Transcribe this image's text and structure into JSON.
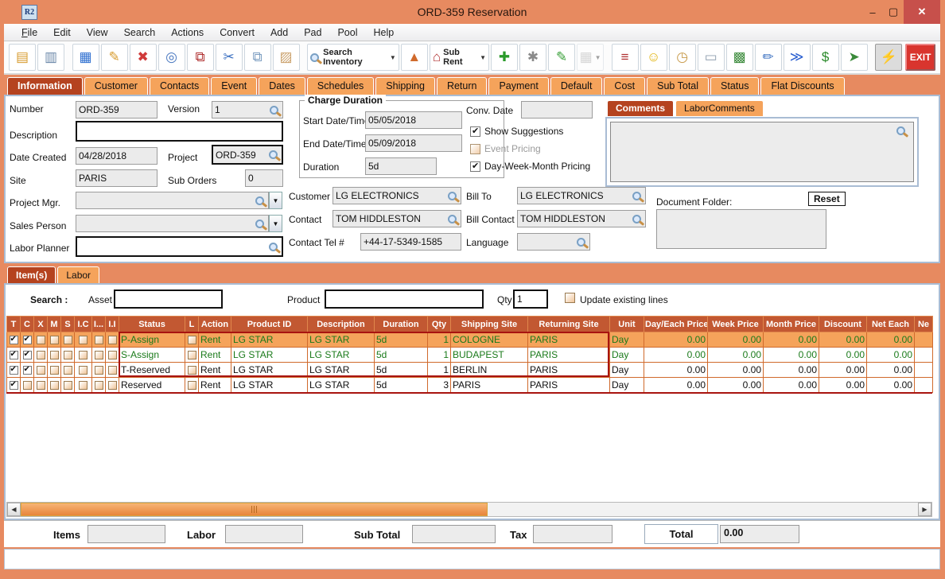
{
  "window": {
    "title": "ORD-359 Reservation",
    "app_badge": "R2"
  },
  "window_controls": {
    "minimize": "–",
    "maximize": "▢",
    "close": "✕"
  },
  "menubar": {
    "items": [
      {
        "label": "File",
        "accel": true
      },
      {
        "label": "Edit"
      },
      {
        "label": "View"
      },
      {
        "label": "Search"
      },
      {
        "label": "Actions"
      },
      {
        "label": "Convert"
      },
      {
        "label": "Add"
      },
      {
        "label": "Pad"
      },
      {
        "label": "Pool"
      },
      {
        "label": "Help"
      }
    ]
  },
  "toolbar": {
    "buttons": [
      {
        "name": "new-document-icon",
        "glyph": "▤",
        "color": "#d79b2e"
      },
      {
        "name": "print-icon",
        "glyph": "▥",
        "color": "#6a87a8"
      },
      {
        "name": "sep"
      },
      {
        "name": "save-icon",
        "glyph": "▦",
        "color": "#2e6fd0"
      },
      {
        "name": "edit-icon",
        "glyph": "✎",
        "color": "#d79b2e"
      },
      {
        "name": "delete-icon",
        "glyph": "✖",
        "color": "#d03a3a"
      },
      {
        "name": "find-icon",
        "glyph": "◎",
        "color": "#4a78c0"
      },
      {
        "name": "copy-document-icon",
        "glyph": "⧉",
        "color": "#b03030"
      },
      {
        "name": "cut-icon",
        "glyph": "✂",
        "color": "#3a6fc0"
      },
      {
        "name": "copy-icon",
        "glyph": "⧉",
        "color": "#7a9cc0"
      },
      {
        "name": "paste-icon",
        "glyph": "▨",
        "color": "#caa06a"
      },
      {
        "name": "sep"
      },
      {
        "name": "search-inventory-button",
        "glyph": "mag",
        "label": "Search Inventory",
        "dropdown": true
      },
      {
        "name": "transfer-icon",
        "glyph": "▲",
        "color": "#d06a2c"
      },
      {
        "name": "sub-rent-button",
        "glyph": "⌂",
        "color": "#b03030",
        "label": "Sub Rent",
        "dropdown": true
      },
      {
        "name": "add-line-icon",
        "glyph": "✚",
        "color": "#2a9a2a"
      },
      {
        "name": "suggestions-icon",
        "glyph": "✱",
        "color": "#8a8a8a"
      },
      {
        "name": "notepad-icon",
        "glyph": "✎",
        "color": "#3aa03a"
      },
      {
        "name": "calendar-icon",
        "glyph": "▦",
        "color": "#aaaaaa",
        "dropdown": true,
        "disabled": true
      },
      {
        "name": "sep"
      },
      {
        "name": "hierarchy-icon",
        "glyph": "≡",
        "color": "#b03030"
      },
      {
        "name": "smiley-icon",
        "glyph": "☺",
        "color": "#e0b000"
      },
      {
        "name": "folder-history-icon",
        "glyph": "◷",
        "color": "#c89a4a"
      },
      {
        "name": "keyboard-key-icon",
        "glyph": "▭",
        "color": "#90a0b0"
      },
      {
        "name": "availability-cubes-icon",
        "glyph": "▩",
        "color": "#3a8a3a"
      },
      {
        "name": "edit-notes-icon",
        "glyph": "✏",
        "color": "#3a6fc0"
      },
      {
        "name": "send-money-icon",
        "glyph": "≫",
        "color": "#2a5fd0"
      },
      {
        "name": "billing-icon",
        "glyph": "$",
        "color": "#2a8a2a"
      },
      {
        "name": "truck-icon",
        "glyph": "➤",
        "color": "#3a8a3a"
      },
      {
        "name": "sep"
      },
      {
        "name": "quick-action-icon",
        "glyph": "⚡",
        "color": "#c8a000",
        "pressed": true
      },
      {
        "name": "spacer"
      },
      {
        "name": "exit-button",
        "label": "EXIT",
        "exit": true
      }
    ]
  },
  "main_tabs": {
    "active": "Information",
    "items": [
      "Information",
      "Customer",
      "Contacts",
      "Event",
      "Dates",
      "Schedules",
      "Shipping",
      "Return",
      "Payment",
      "Default",
      "Cost",
      "Sub Total",
      "Status",
      "Flat Discounts"
    ]
  },
  "form": {
    "number": {
      "label": "Number",
      "value": "ORD-359"
    },
    "version": {
      "label": "Version",
      "value": "1"
    },
    "description": {
      "label": "Description",
      "value": ""
    },
    "date_created": {
      "label": "Date Created",
      "value": "04/28/2018"
    },
    "project": {
      "label": "Project",
      "value": "ORD-359"
    },
    "site": {
      "label": "Site",
      "value": "PARIS"
    },
    "sub_orders": {
      "label": "Sub Orders",
      "value": "0"
    },
    "project_mgr": {
      "label": "Project Mgr.",
      "value": ""
    },
    "sales_person": {
      "label": "Sales Person",
      "value": ""
    },
    "labor_planner": {
      "label": "Labor Planner",
      "value": ""
    }
  },
  "charge_duration": {
    "title": "Charge Duration",
    "start": {
      "label": "Start Date/Time",
      "value": "05/05/2018"
    },
    "end": {
      "label": "End Date/Time",
      "value": "05/09/2018"
    },
    "duration": {
      "label": "Duration",
      "value": "5d"
    }
  },
  "conv_date": {
    "label": "Conv. Date",
    "value": ""
  },
  "options": [
    {
      "label": "Show Suggestions",
      "checked": true,
      "enabled": true
    },
    {
      "label": "Event Pricing",
      "checked": false,
      "enabled": false
    },
    {
      "label": "Day-Week-Month Pricing",
      "checked": true,
      "enabled": true
    }
  ],
  "comments_tabs": {
    "active": "Comments",
    "items": [
      "Comments",
      "LaborComments"
    ]
  },
  "customer_block": {
    "customer": {
      "label": "Customer",
      "value": "LG ELECTRONICS"
    },
    "contact": {
      "label": "Contact",
      "value": "TOM HIDDLESTON"
    },
    "contact_tel": {
      "label": "Contact Tel #",
      "value": "+44-17-5349-1585"
    },
    "bill_to": {
      "label": "Bill To",
      "value": "LG ELECTRONICS"
    },
    "bill_contact": {
      "label": "Bill Contact",
      "value": "TOM HIDDLESTON"
    },
    "language": {
      "label": "Language",
      "value": ""
    }
  },
  "document_folder": {
    "label": "Document Folder:",
    "reset_label": "Reset",
    "value": ""
  },
  "detail_tabs": {
    "active": "Item(s)",
    "items": [
      "Item(s)",
      "Labor"
    ]
  },
  "item_search": {
    "search_label": "Search :",
    "asset_label": "Asset",
    "asset_value": "",
    "product_label": "Product",
    "product_value": "",
    "qty_label": "Qty",
    "qty_value": "1",
    "update_label": "Update existing lines",
    "update_checked": false
  },
  "items_table": {
    "check_columns": [
      "T",
      "C",
      "X",
      "M",
      "S",
      "I.C",
      "I...",
      "I.I"
    ],
    "columns": [
      "Status",
      "L",
      "Action",
      "Product ID",
      "Description",
      "Duration",
      "Qty",
      "Shipping Site",
      "Returning Site",
      "Unit",
      "Day/Each Price",
      "Week Price",
      "Month Price",
      "Discount",
      "Net Each",
      "Ne"
    ],
    "rows": [
      {
        "checks": [
          true,
          true,
          false,
          false,
          false,
          false,
          false,
          false
        ],
        "color": "green",
        "highlight": true,
        "cells": [
          "P-Assign",
          "",
          "Rent",
          "LG STAR",
          "LG STAR",
          "5d",
          "1",
          "COLOGNE",
          "PARIS",
          "Day",
          "0.00",
          "0.00",
          "0.00",
          "0.00",
          "0.00",
          ""
        ]
      },
      {
        "checks": [
          true,
          true,
          false,
          false,
          false,
          false,
          false,
          false
        ],
        "color": "green",
        "highlight": false,
        "cells": [
          "S-Assign",
          "",
          "Rent",
          "LG STAR",
          "LG STAR",
          "5d",
          "1",
          "BUDAPEST",
          "PARIS",
          "Day",
          "0.00",
          "0.00",
          "0.00",
          "0.00",
          "0.00",
          ""
        ]
      },
      {
        "checks": [
          true,
          true,
          false,
          false,
          false,
          false,
          false,
          false
        ],
        "color": "black",
        "highlight": false,
        "cells": [
          "T-Reserved",
          "",
          "Rent",
          "LG STAR",
          "LG STAR",
          "5d",
          "1",
          "BERLIN",
          "PARIS",
          "Day",
          "0.00",
          "0.00",
          "0.00",
          "0.00",
          "0.00",
          ""
        ]
      },
      {
        "checks": [
          true,
          false,
          false,
          false,
          false,
          false,
          false,
          false
        ],
        "color": "black",
        "highlight": false,
        "cells": [
          "Reserved",
          "",
          "Rent",
          "LG STAR",
          "LG STAR",
          "5d",
          "3",
          "PARIS",
          "PARIS",
          "Day",
          "0.00",
          "0.00",
          "0.00",
          "0.00",
          "0.00",
          ""
        ]
      }
    ]
  },
  "totals": {
    "items_label": "Items",
    "items_value": "",
    "labor_label": "Labor",
    "labor_value": "",
    "sub_total_label": "Sub Total",
    "sub_total_value": "",
    "tax_label": "Tax",
    "tax_value": "",
    "total_label": "Total",
    "total_value": "0.00"
  },
  "colors": {
    "titlebar": "#E78A60",
    "tab_orange": "#F5A35B",
    "tab_active": "#B5431F",
    "table_header": "#C25832",
    "row_highlight": "#F5A35B",
    "green_text": "#1A7A1A",
    "selection_border": "#A81410",
    "close_red": "#C7504B"
  }
}
